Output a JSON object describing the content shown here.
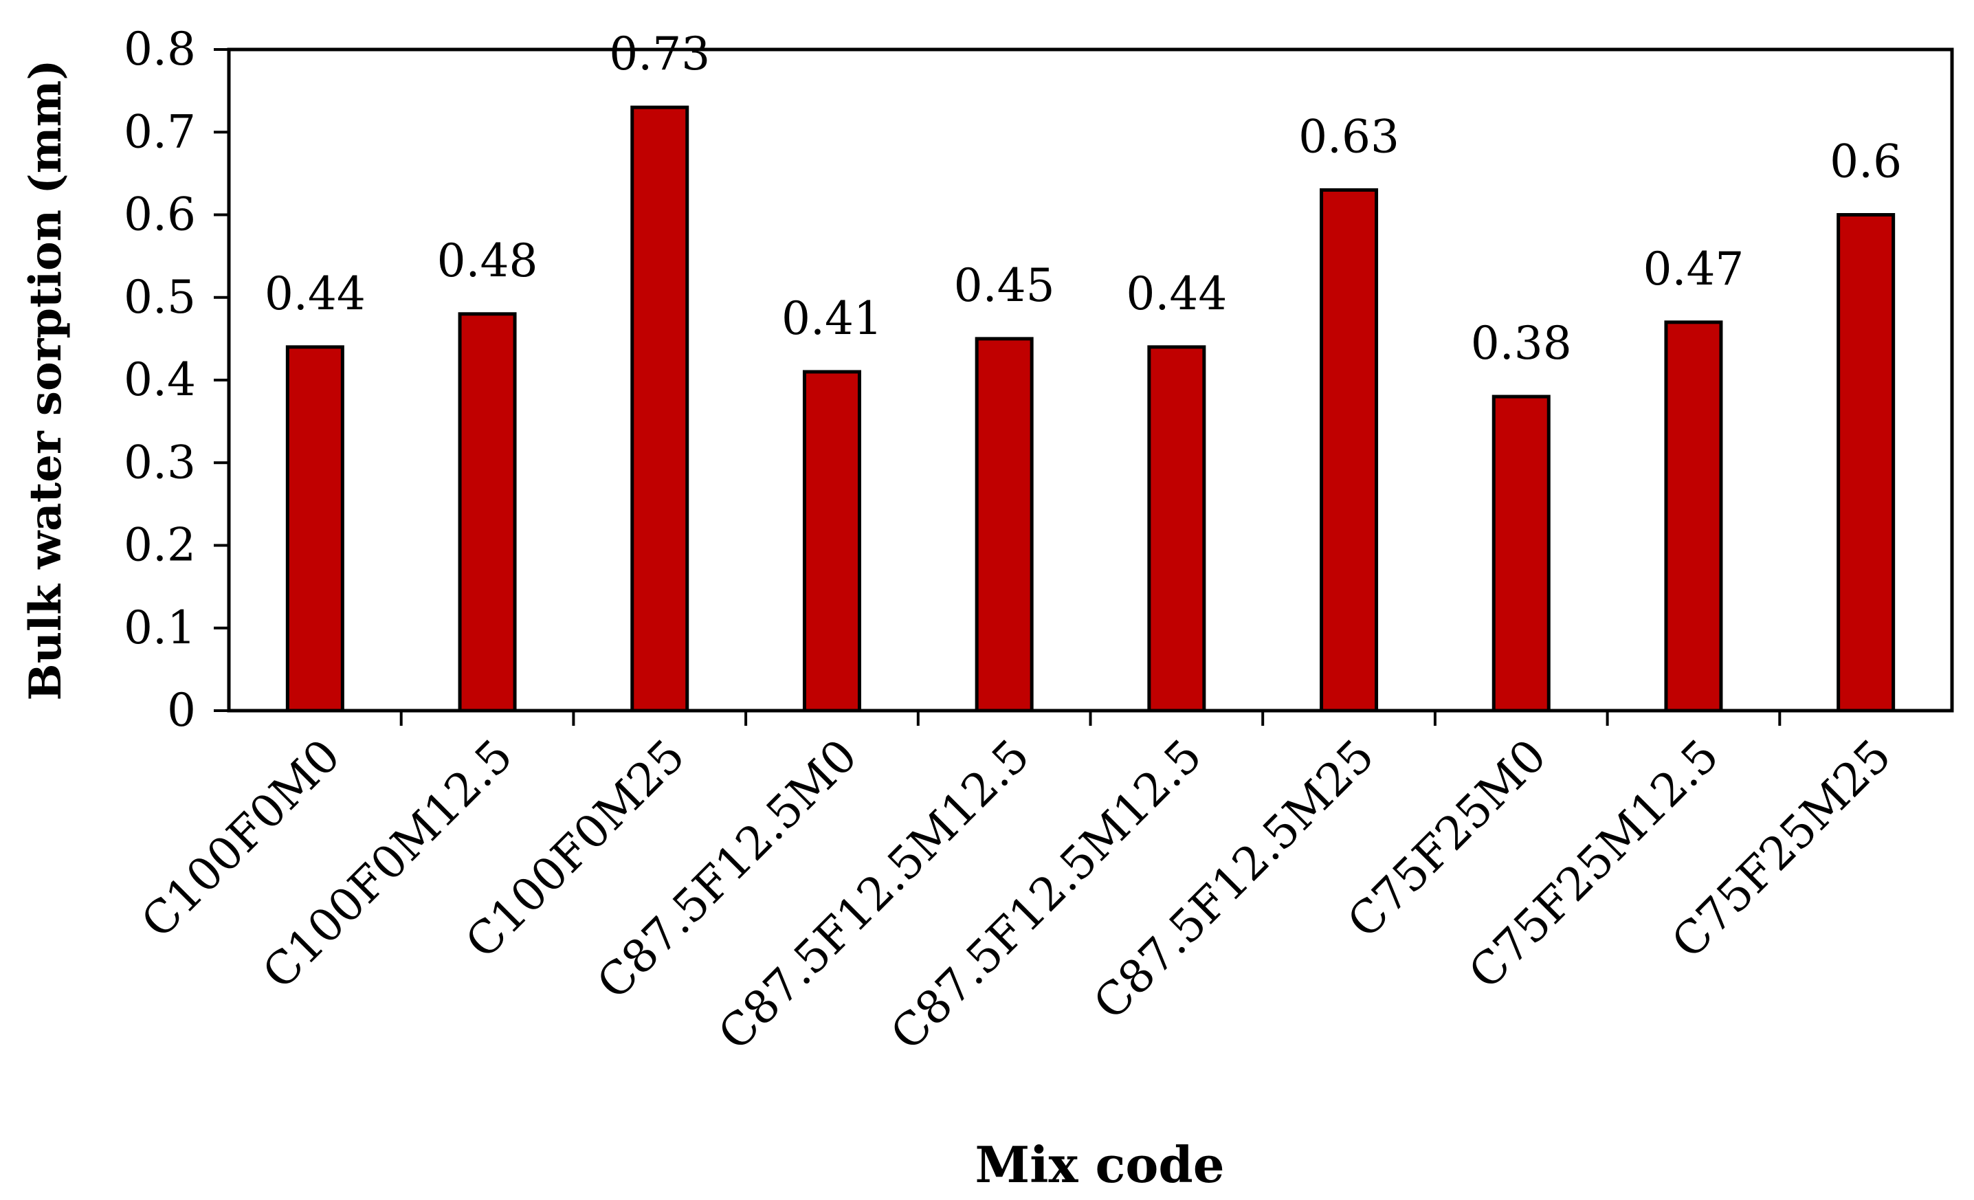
{
  "chart_data": {
    "type": "bar",
    "title": "",
    "xlabel": "Mix code",
    "ylabel": "Bulk water sorption (mm)",
    "categories": [
      "C100F0M0",
      "C100F0M12.5",
      "C100F0M25",
      "C87.5F12.5M0",
      "C87.5F12.5M12.5",
      "C87.5F12.5M12.5",
      "C87.5F12.5M25",
      "C75F25M0",
      "C75F25M12.5",
      "C75F25M25"
    ],
    "values": [
      0.44,
      0.48,
      0.73,
      0.41,
      0.45,
      0.44,
      0.63,
      0.38,
      0.47,
      0.6
    ],
    "data_labels": [
      "0.44",
      "0.48",
      "0.73",
      "0.41",
      "0.45",
      "0.44",
      "0.63",
      "0.38",
      "0.47",
      "0.6"
    ],
    "ylim": [
      0,
      0.8
    ],
    "yticks": [
      "0",
      "0.1",
      "0.2",
      "0.3",
      "0.4",
      "0.5",
      "0.6",
      "0.7",
      "0.8"
    ],
    "ytick_values": [
      0,
      0.1,
      0.2,
      0.3,
      0.4,
      0.5,
      0.6,
      0.7,
      0.8
    ],
    "grid": false,
    "legend": "none",
    "colors": {
      "bar_fill": "#C00000",
      "bar_stroke": "#000000",
      "axis": "#000000"
    }
  }
}
